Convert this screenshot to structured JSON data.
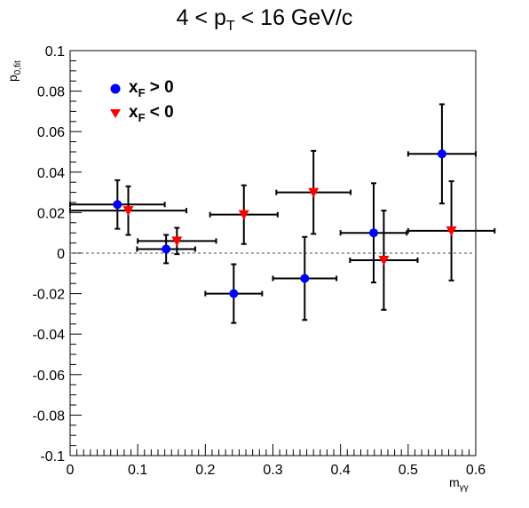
{
  "chart_data": {
    "type": "scatter",
    "title_parts": [
      "4 < p",
      "T",
      " < 16 GeV/c"
    ],
    "ylabel_parts": [
      "p",
      "0,fit"
    ],
    "xlabel_parts": [
      "m",
      "γγ"
    ],
    "xlim": [
      0,
      0.6
    ],
    "ylim": [
      -0.1,
      0.1
    ],
    "x_ticks": [
      "0",
      "0.1",
      "0.2",
      "0.3",
      "0.4",
      "0.5",
      "0.6"
    ],
    "y_ticks": [
      "-0.1",
      "-0.08",
      "-0.06",
      "-0.04",
      "-0.02",
      "0",
      "0.02",
      "0.04",
      "0.06",
      "0.08",
      "0.1"
    ],
    "x_tick_values": [
      0,
      0.1,
      0.2,
      0.3,
      0.4,
      0.5,
      0.6
    ],
    "y_tick_values": [
      -0.1,
      -0.08,
      -0.06,
      -0.04,
      -0.02,
      0,
      0.02,
      0.04,
      0.06,
      0.08,
      0.1
    ],
    "reference_line": {
      "y": 0,
      "style": "dashed",
      "color": "#888888"
    },
    "grid": false,
    "legend_position": "top-left",
    "series": [
      {
        "name_parts": [
          "x",
          "F",
          " > 0"
        ],
        "marker": "circle",
        "color": "#0000ff",
        "points": [
          {
            "x": 0.07,
            "y": 0.024,
            "xerr_low": 0.07,
            "xerr_high": 0.07,
            "yerr": 0.012
          },
          {
            "x": 0.142,
            "y": 0.002,
            "xerr_low": 0.043,
            "xerr_high": 0.043,
            "yerr": 0.007
          },
          {
            "x": 0.242,
            "y": -0.02,
            "xerr_low": 0.042,
            "xerr_high": 0.042,
            "yerr": 0.0145
          },
          {
            "x": 0.347,
            "y": -0.0125,
            "xerr_low": 0.047,
            "xerr_high": 0.047,
            "yerr": 0.0205
          },
          {
            "x": 0.449,
            "y": 0.01,
            "xerr_low": 0.049,
            "xerr_high": 0.049,
            "yerr": 0.0245
          },
          {
            "x": 0.55,
            "y": 0.049,
            "xerr_low": 0.05,
            "xerr_high": 0.05,
            "yerr": 0.0245
          }
        ]
      },
      {
        "name_parts": [
          "x",
          "F",
          " < 0"
        ],
        "marker": "triangle-down",
        "color": "#ff0000",
        "points": [
          {
            "x": 0.086,
            "y": 0.021,
            "xerr_low": 0.086,
            "xerr_high": 0.086,
            "yerr": 0.012
          },
          {
            "x": 0.158,
            "y": 0.006,
            "xerr_low": 0.058,
            "xerr_high": 0.058,
            "yerr": 0.0065
          },
          {
            "x": 0.257,
            "y": 0.019,
            "xerr_low": 0.05,
            "xerr_high": 0.05,
            "yerr": 0.0145
          },
          {
            "x": 0.36,
            "y": 0.03,
            "xerr_low": 0.055,
            "xerr_high": 0.055,
            "yerr": 0.0205
          },
          {
            "x": 0.464,
            "y": -0.0035,
            "xerr_low": 0.05,
            "xerr_high": 0.05,
            "yerr": 0.0245
          },
          {
            "x": 0.564,
            "y": 0.011,
            "xerr_low": 0.064,
            "xerr_high": 0.064,
            "yerr": 0.0245
          }
        ]
      }
    ]
  }
}
